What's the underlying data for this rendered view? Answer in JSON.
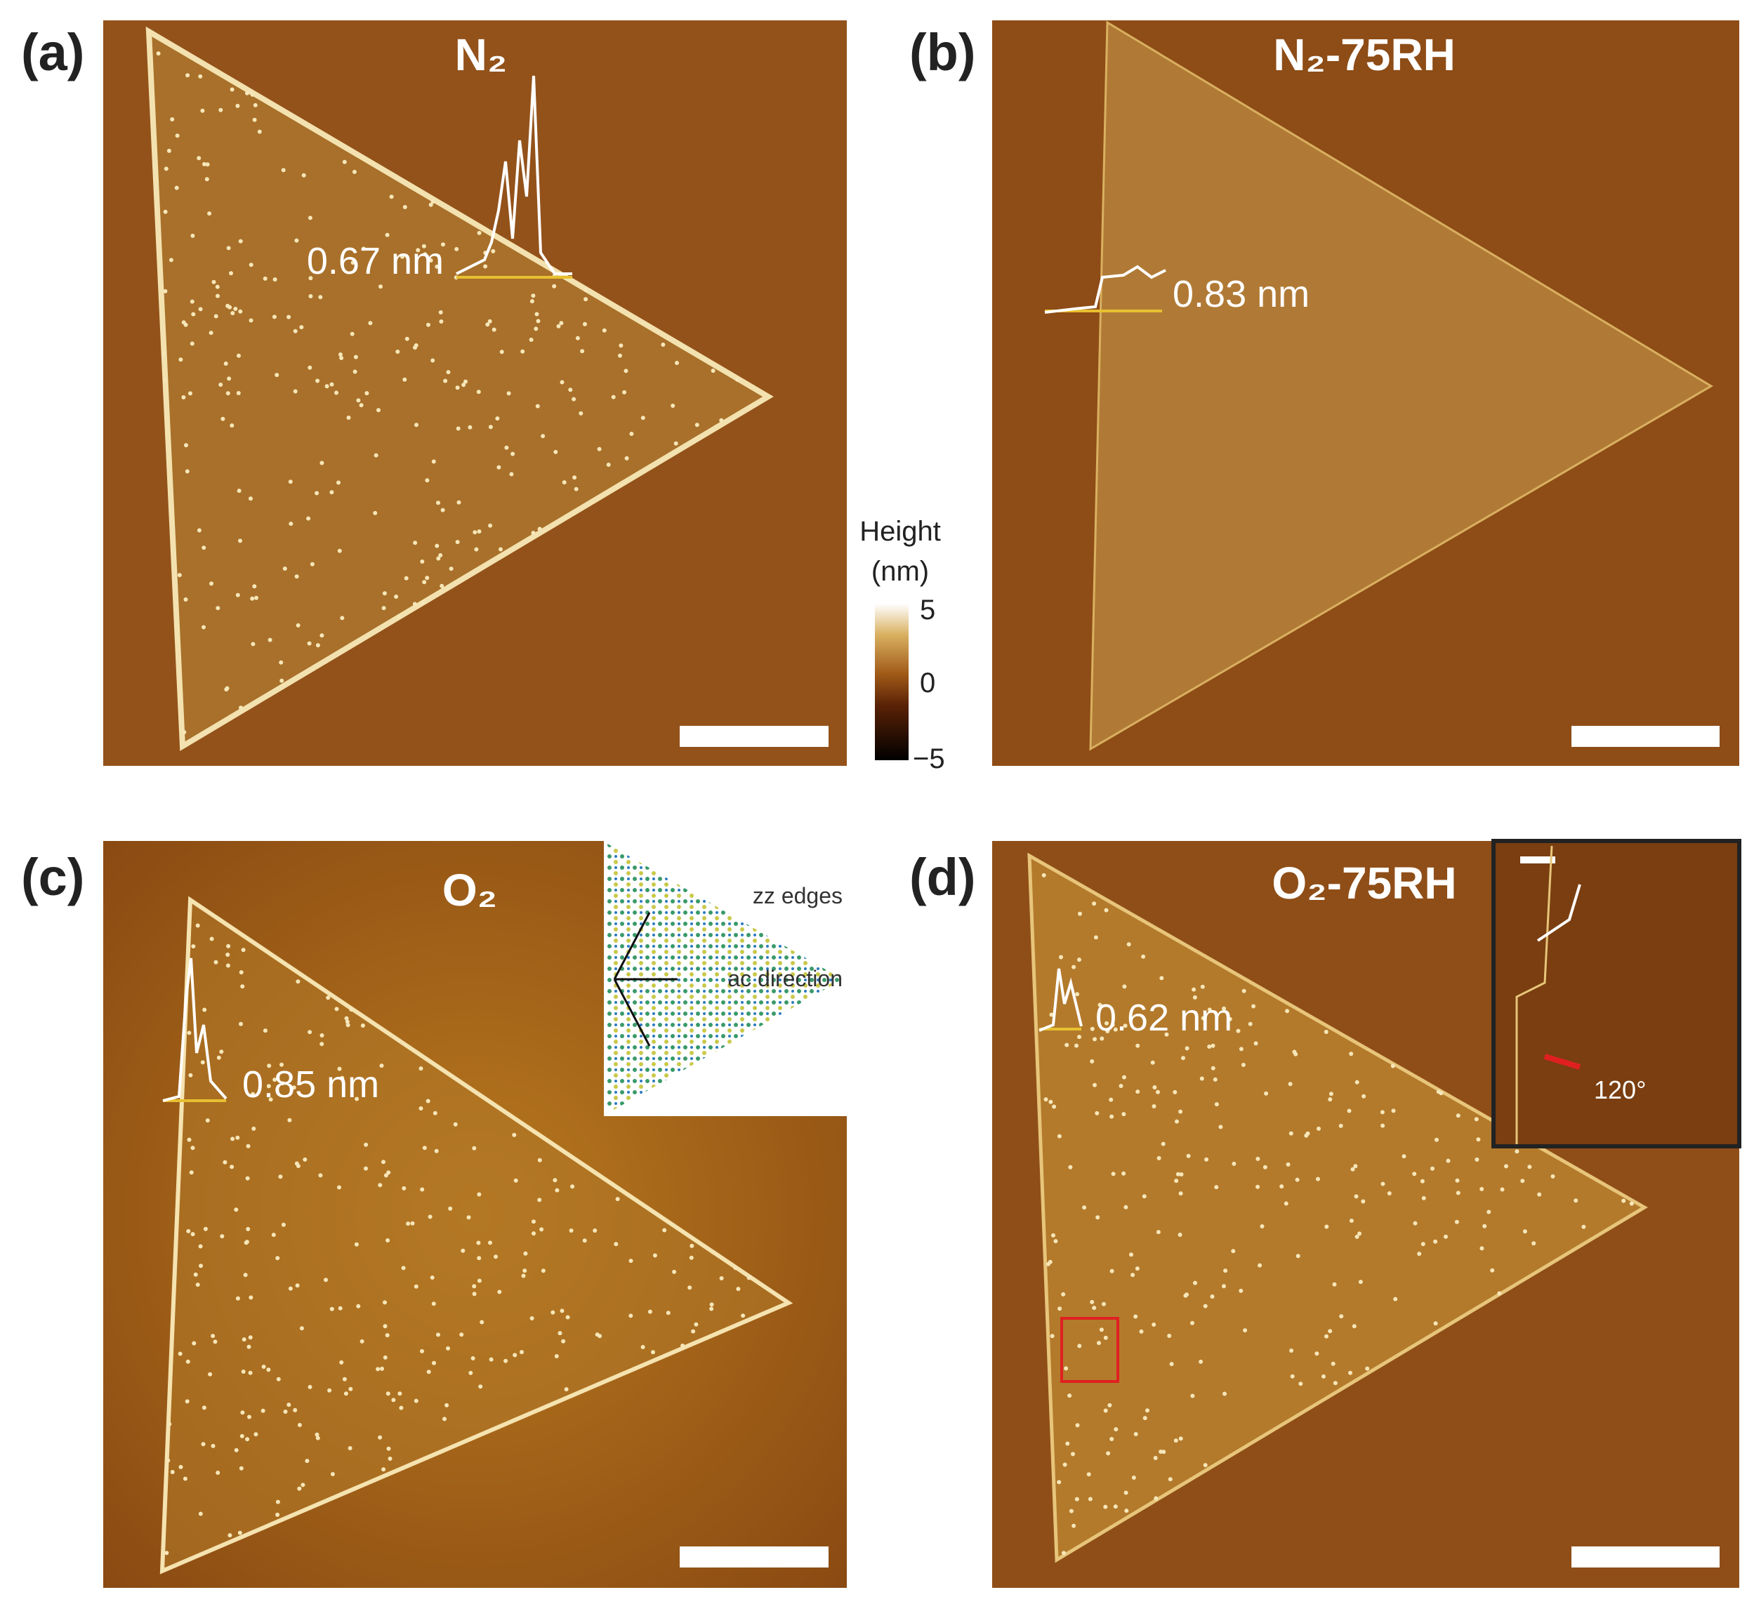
{
  "panels": [
    {
      "label": "(a)",
      "title": "N₂",
      "height_label": "0.67 nm"
    },
    {
      "label": "(b)",
      "title": "N₂-75RH",
      "height_label": "0.83 nm"
    },
    {
      "label": "(c)",
      "title": "O₂",
      "height_label": "0.85 nm"
    },
    {
      "label": "(d)",
      "title": "O₂-75RH",
      "height_label": "0.62 nm"
    }
  ],
  "colorbar": {
    "title": "Height",
    "unit": "(nm)",
    "ticks": [
      "5",
      "0",
      "−5"
    ]
  },
  "inset_c": {
    "edge_label": "zz edges",
    "direction_label": "ac direction"
  },
  "inset_d": {
    "angle_label": "120°"
  }
}
